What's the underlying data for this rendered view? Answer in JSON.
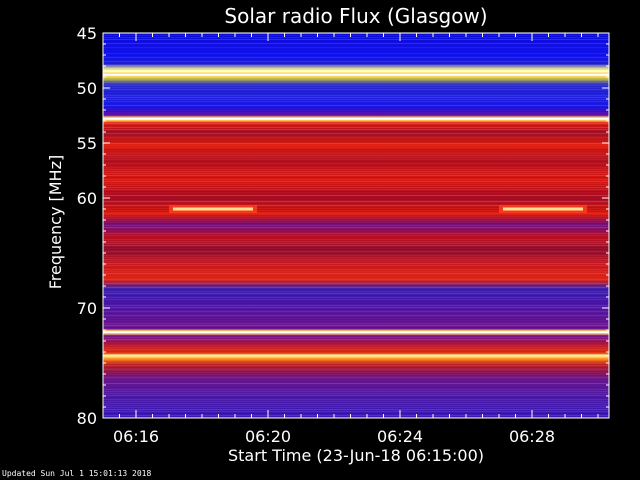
{
  "chart_data": {
    "type": "heatmap",
    "title": "Solar radio Flux (Glasgow)",
    "xlabel": "Start Time (23-Jun-18 06:15:00)",
    "ylabel": "Frequency [MHz]",
    "x_range": [
      "06:15:00",
      "06:30:20"
    ],
    "y_range": [
      45,
      80
    ],
    "y_inverted": true,
    "x_ticks": [
      "06:16",
      "06:20",
      "06:24",
      "06:28"
    ],
    "x_tick_minutes": [
      1,
      5,
      9,
      13
    ],
    "y_ticks": [
      45,
      50,
      55,
      60,
      70,
      80
    ],
    "grid": false,
    "colormap": "blue-red-yellow-white",
    "colors": {
      "background": "#000000",
      "low": "#1010e0",
      "mid": "#d01010",
      "high": "#ffff80",
      "max": "#ffffff"
    },
    "bright_bands_mhz": [
      48.8,
      52.8,
      72.2
    ],
    "bursts": [
      {
        "start": "06:17:00",
        "end": "06:19:40",
        "freq_mhz": 61.0
      },
      {
        "start": "06:27:00",
        "end": "06:29:40",
        "freq_mhz": 61.0
      }
    ]
  },
  "footer": "Updated Sun Jul  1 15:01:13 2018"
}
